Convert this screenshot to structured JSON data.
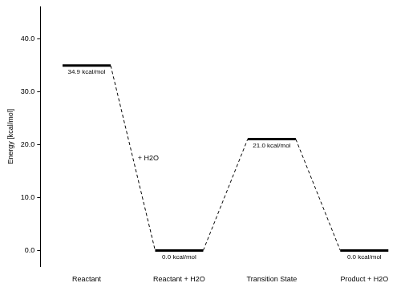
{
  "chart_data": {
    "type": "energy_profile",
    "y_label": "Energy [kcal/mol]",
    "categories": [
      "Reactant",
      "Reactant + H2O",
      "Transition State",
      "Product + H2O"
    ],
    "values": [
      34.9,
      0.0,
      21.0,
      0.0
    ],
    "value_labels": [
      "34.9 kcal/mol",
      "0.0 kcal/mol",
      "21.0 kcal/mol",
      "0.0 kcal/mol"
    ],
    "data_labels": true,
    "annotations": [
      "+ H2O"
    ],
    "color": "#000000",
    "line_style": "dashed",
    "ylim": [
      -3,
      46
    ],
    "yticks": [
      {
        "value": 0,
        "label": "0.0"
      },
      {
        "value": 10,
        "label": "10.0"
      },
      {
        "value": 20,
        "label": "20.0"
      },
      {
        "value": 30,
        "label": "30.0"
      },
      {
        "value": 40,
        "label": "40.0"
      }
    ],
    "grid": false
  }
}
